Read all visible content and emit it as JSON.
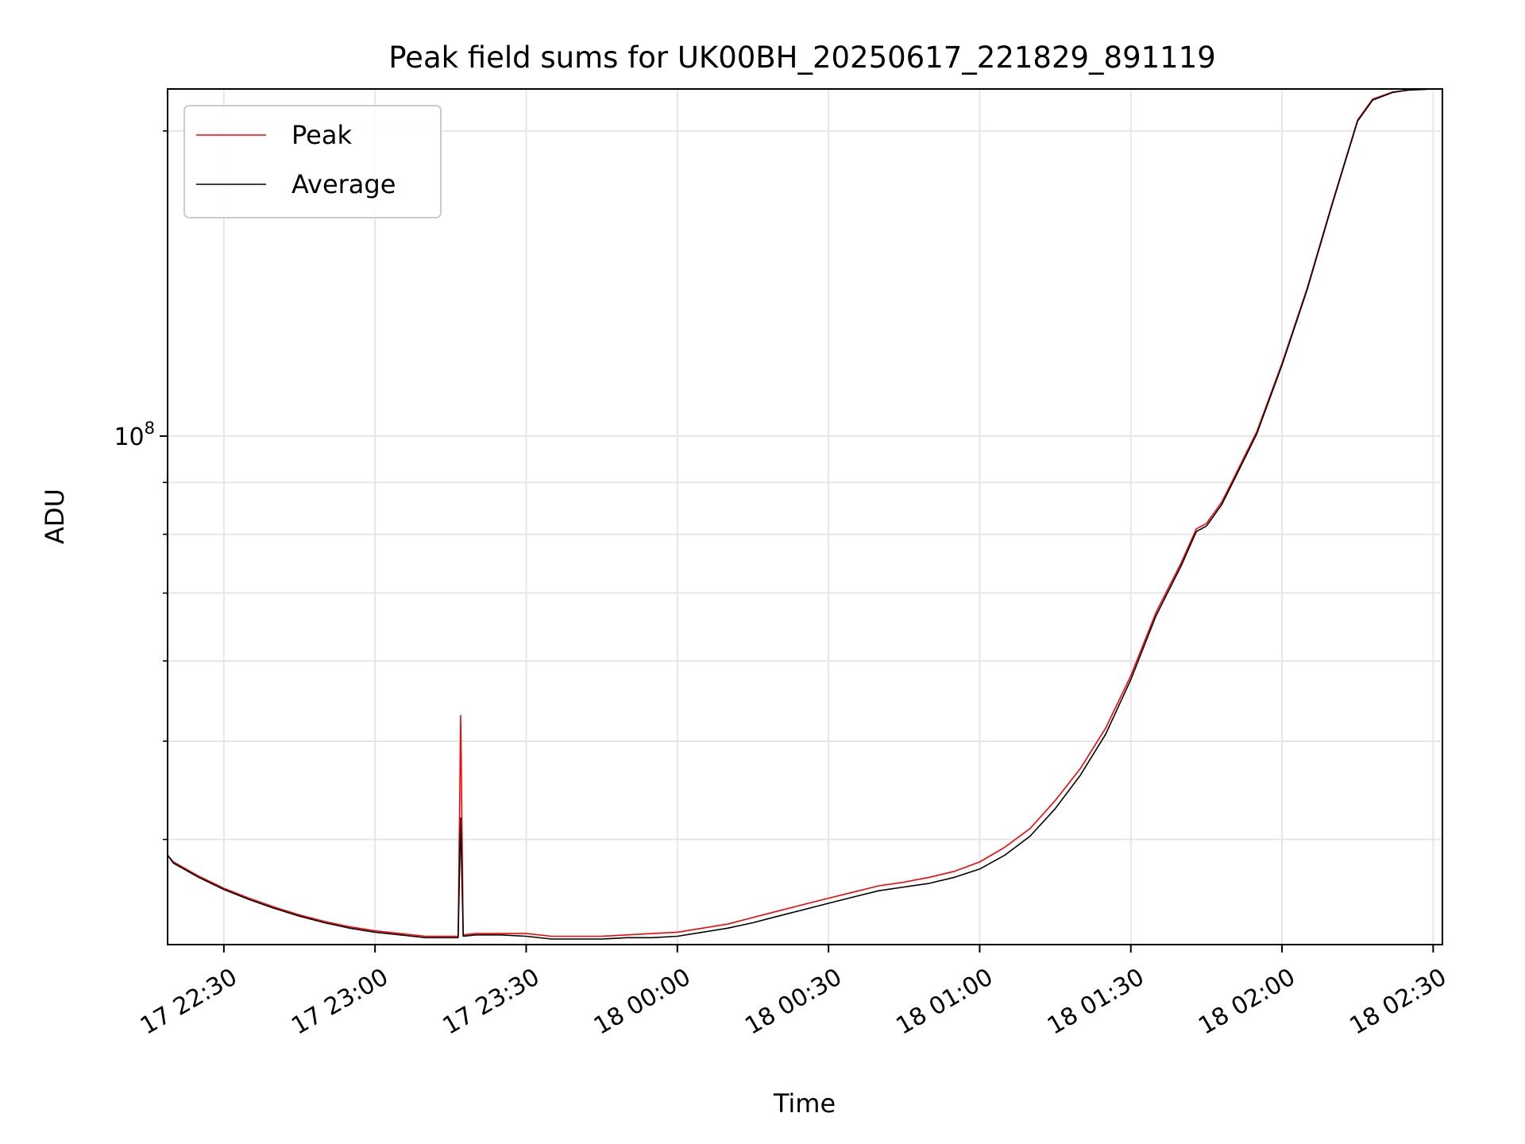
{
  "chart_data": {
    "type": "line",
    "title": "Peak field sums for UK00BH_20250617_221829_891119",
    "xlabel": "Time",
    "ylabel": "ADU",
    "y_scale": "log",
    "ylim": [
      31500000,
      220000000
    ],
    "xlim": [
      "2025-06-17 22:18:50",
      "2025-06-18 02:31:50"
    ],
    "grid": true,
    "legend_position": "upper-left",
    "x_ticks": [
      {
        "t": "2025-06-17 22:30",
        "label": "17 22:30"
      },
      {
        "t": "2025-06-17 23:00",
        "label": "17 23:00"
      },
      {
        "t": "2025-06-17 23:30",
        "label": "17 23:30"
      },
      {
        "t": "2025-06-18 00:00",
        "label": "18 00:00"
      },
      {
        "t": "2025-06-18 00:30",
        "label": "18 00:30"
      },
      {
        "t": "2025-06-18 01:00",
        "label": "18 01:00"
      },
      {
        "t": "2025-06-18 01:30",
        "label": "18 01:30"
      },
      {
        "t": "2025-06-18 02:00",
        "label": "18 02:00"
      },
      {
        "t": "2025-06-18 02:30",
        "label": "18 02:30"
      }
    ],
    "y_major_tick": {
      "value": 100000000,
      "label_base": "10",
      "label_exp": "8"
    },
    "y_minor_ticks": [
      40000000,
      50000000,
      60000000,
      70000000,
      80000000,
      90000000,
      200000000
    ],
    "series": [
      {
        "name": "Peak",
        "color": "#ff0000",
        "points": [
          [
            "2025-06-17 22:18:50",
            38600000
          ],
          [
            "2025-06-17 22:20:00",
            38000000
          ],
          [
            "2025-06-17 22:25:00",
            36800000
          ],
          [
            "2025-06-17 22:30:00",
            35800000
          ],
          [
            "2025-06-17 22:35:00",
            35000000
          ],
          [
            "2025-06-17 22:40:00",
            34300000
          ],
          [
            "2025-06-17 22:45:00",
            33700000
          ],
          [
            "2025-06-17 22:50:00",
            33200000
          ],
          [
            "2025-06-17 22:55:00",
            32800000
          ],
          [
            "2025-06-17 23:00:00",
            32500000
          ],
          [
            "2025-06-17 23:05:00",
            32300000
          ],
          [
            "2025-06-17 23:10:00",
            32100000
          ],
          [
            "2025-06-17 23:16:30",
            32100000
          ],
          [
            "2025-06-17 23:17:00",
            53000000
          ],
          [
            "2025-06-17 23:17:30",
            32200000
          ],
          [
            "2025-06-17 23:20:00",
            32300000
          ],
          [
            "2025-06-17 23:25:00",
            32300000
          ],
          [
            "2025-06-17 23:30:00",
            32300000
          ],
          [
            "2025-06-17 23:35:00",
            32100000
          ],
          [
            "2025-06-17 23:40:00",
            32100000
          ],
          [
            "2025-06-17 23:45:00",
            32100000
          ],
          [
            "2025-06-17 23:50:00",
            32200000
          ],
          [
            "2025-06-17 23:55:00",
            32300000
          ],
          [
            "2025-06-18 00:00:00",
            32400000
          ],
          [
            "2025-06-18 00:05:00",
            32700000
          ],
          [
            "2025-06-18 00:10:00",
            33000000
          ],
          [
            "2025-06-18 00:15:00",
            33500000
          ],
          [
            "2025-06-18 00:20:00",
            34000000
          ],
          [
            "2025-06-18 00:25:00",
            34500000
          ],
          [
            "2025-06-18 00:30:00",
            35000000
          ],
          [
            "2025-06-18 00:35:00",
            35500000
          ],
          [
            "2025-06-18 00:40:00",
            36000000
          ],
          [
            "2025-06-18 00:45:00",
            36300000
          ],
          [
            "2025-06-18 00:50:00",
            36700000
          ],
          [
            "2025-06-18 00:55:00",
            37200000
          ],
          [
            "2025-06-18 01:00:00",
            38000000
          ],
          [
            "2025-06-18 01:05:00",
            39300000
          ],
          [
            "2025-06-18 01:10:00",
            41000000
          ],
          [
            "2025-06-18 01:15:00",
            43700000
          ],
          [
            "2025-06-18 01:20:00",
            47000000
          ],
          [
            "2025-06-18 01:25:00",
            51500000
          ],
          [
            "2025-06-18 01:30:00",
            58000000
          ],
          [
            "2025-06-18 01:35:00",
            67000000
          ],
          [
            "2025-06-18 01:40:00",
            75000000
          ],
          [
            "2025-06-18 01:43:00",
            81000000
          ],
          [
            "2025-06-18 01:45:00",
            82000000
          ],
          [
            "2025-06-18 01:48:00",
            86000000
          ],
          [
            "2025-06-18 01:50:00",
            90000000
          ],
          [
            "2025-06-18 01:55:00",
            101000000
          ],
          [
            "2025-06-18 02:00:00",
            118000000
          ],
          [
            "2025-06-18 02:05:00",
            140000000
          ],
          [
            "2025-06-18 02:10:00",
            170000000
          ],
          [
            "2025-06-18 02:15:00",
            205000000
          ],
          [
            "2025-06-18 02:18:00",
            215000000
          ],
          [
            "2025-06-18 02:22:00",
            218500000
          ],
          [
            "2025-06-18 02:25:00",
            219500000
          ],
          [
            "2025-06-18 02:30:00",
            220000000
          ]
        ]
      },
      {
        "name": "Average",
        "color": "#000000",
        "points": [
          [
            "2025-06-17 22:18:50",
            38600000
          ],
          [
            "2025-06-17 22:20:00",
            37900000
          ],
          [
            "2025-06-17 22:25:00",
            36700000
          ],
          [
            "2025-06-17 22:30:00",
            35700000
          ],
          [
            "2025-06-17 22:35:00",
            34900000
          ],
          [
            "2025-06-17 22:40:00",
            34200000
          ],
          [
            "2025-06-17 22:45:00",
            33600000
          ],
          [
            "2025-06-17 22:50:00",
            33100000
          ],
          [
            "2025-06-17 22:55:00",
            32700000
          ],
          [
            "2025-06-17 23:00:00",
            32400000
          ],
          [
            "2025-06-17 23:05:00",
            32200000
          ],
          [
            "2025-06-17 23:10:00",
            32000000
          ],
          [
            "2025-06-17 23:16:30",
            32000000
          ],
          [
            "2025-06-17 23:17:00",
            42000000
          ],
          [
            "2025-06-17 23:17:30",
            32100000
          ],
          [
            "2025-06-17 23:20:00",
            32200000
          ],
          [
            "2025-06-17 23:25:00",
            32200000
          ],
          [
            "2025-06-17 23:30:00",
            32100000
          ],
          [
            "2025-06-17 23:35:00",
            31900000
          ],
          [
            "2025-06-17 23:40:00",
            31900000
          ],
          [
            "2025-06-17 23:45:00",
            31900000
          ],
          [
            "2025-06-17 23:50:00",
            32000000
          ],
          [
            "2025-06-17 23:55:00",
            32000000
          ],
          [
            "2025-06-18 00:00:00",
            32100000
          ],
          [
            "2025-06-18 00:05:00",
            32400000
          ],
          [
            "2025-06-18 00:10:00",
            32700000
          ],
          [
            "2025-06-18 00:15:00",
            33100000
          ],
          [
            "2025-06-18 00:20:00",
            33600000
          ],
          [
            "2025-06-18 00:25:00",
            34100000
          ],
          [
            "2025-06-18 00:30:00",
            34600000
          ],
          [
            "2025-06-18 00:35:00",
            35100000
          ],
          [
            "2025-06-18 00:40:00",
            35600000
          ],
          [
            "2025-06-18 00:45:00",
            35900000
          ],
          [
            "2025-06-18 00:50:00",
            36200000
          ],
          [
            "2025-06-18 00:55:00",
            36700000
          ],
          [
            "2025-06-18 01:00:00",
            37400000
          ],
          [
            "2025-06-18 01:05:00",
            38600000
          ],
          [
            "2025-06-18 01:10:00",
            40300000
          ],
          [
            "2025-06-18 01:15:00",
            42900000
          ],
          [
            "2025-06-18 01:20:00",
            46300000
          ],
          [
            "2025-06-18 01:25:00",
            50800000
          ],
          [
            "2025-06-18 01:30:00",
            57500000
          ],
          [
            "2025-06-18 01:35:00",
            66500000
          ],
          [
            "2025-06-18 01:40:00",
            74500000
          ],
          [
            "2025-06-18 01:43:00",
            80500000
          ],
          [
            "2025-06-18 01:45:00",
            81500000
          ],
          [
            "2025-06-18 01:48:00",
            85500000
          ],
          [
            "2025-06-18 01:50:00",
            89500000
          ],
          [
            "2025-06-18 01:55:00",
            100500000
          ],
          [
            "2025-06-18 02:00:00",
            117500000
          ],
          [
            "2025-06-18 02:05:00",
            139500000
          ],
          [
            "2025-06-18 02:10:00",
            169500000
          ],
          [
            "2025-06-18 02:15:00",
            204500000
          ],
          [
            "2025-06-18 02:18:00",
            214500000
          ],
          [
            "2025-06-18 02:22:00",
            218300000
          ],
          [
            "2025-06-18 02:25:00",
            219400000
          ],
          [
            "2025-06-18 02:30:00",
            220000000
          ]
        ]
      }
    ]
  }
}
